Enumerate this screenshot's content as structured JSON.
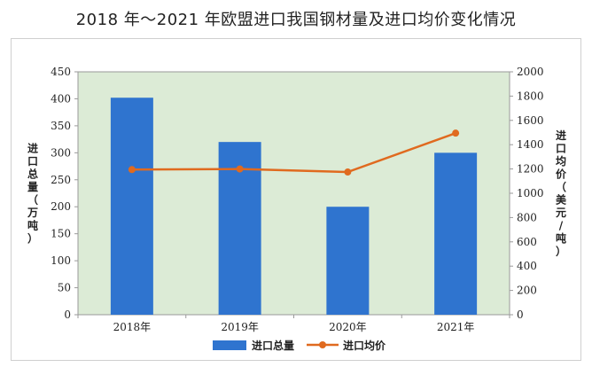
{
  "chart_data": {
    "type": "bar+line",
    "title": "2018 年～2021 年欧盟进口我国钢材量及进口均价变化情况",
    "categories": [
      "2018年",
      "2019年",
      "2020年",
      "2021年"
    ],
    "series": [
      {
        "name": "进口总量",
        "type": "bar",
        "axis": "left",
        "values": [
          402,
          320,
          200,
          300
        ],
        "color": "#2f74cf"
      },
      {
        "name": "进口均价",
        "type": "line",
        "axis": "right",
        "values": [
          1195,
          1200,
          1175,
          1495
        ],
        "color": "#e06a1f"
      }
    ],
    "y_left": {
      "label": "进口总量（万吨）",
      "range": [
        0,
        450
      ],
      "ticks": [
        "0",
        "50",
        "100",
        "150",
        "200",
        "250",
        "300",
        "350",
        "400",
        "450"
      ]
    },
    "y_right": {
      "label": "进口均价（美元/吨）",
      "range": [
        0,
        2000
      ],
      "ticks": [
        "0",
        "200",
        "400",
        "600",
        "800",
        "1000",
        "1200",
        "1400",
        "1600",
        "1800",
        "2000"
      ]
    },
    "plot_background": "#dcebd6",
    "grid": false,
    "legend_position": "bottom"
  }
}
